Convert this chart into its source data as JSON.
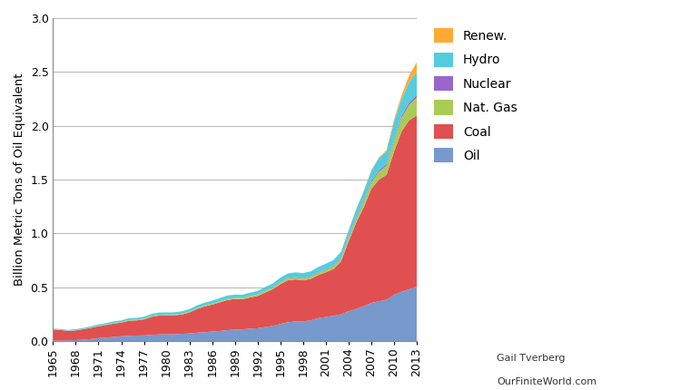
{
  "title": "",
  "ylabel": "Billion Metric Tons of Oil Equivalent",
  "years": [
    1965,
    1966,
    1967,
    1968,
    1969,
    1970,
    1971,
    1972,
    1973,
    1974,
    1975,
    1976,
    1977,
    1978,
    1979,
    1980,
    1981,
    1982,
    1983,
    1984,
    1985,
    1986,
    1987,
    1988,
    1989,
    1990,
    1991,
    1992,
    1993,
    1994,
    1995,
    1996,
    1997,
    1998,
    1999,
    2000,
    2001,
    2002,
    2003,
    2004,
    2005,
    2006,
    2007,
    2008,
    2009,
    2010,
    2011,
    2012,
    2013
  ],
  "oil": [
    0.005,
    0.006,
    0.007,
    0.01,
    0.014,
    0.02,
    0.028,
    0.033,
    0.04,
    0.046,
    0.049,
    0.052,
    0.054,
    0.059,
    0.063,
    0.064,
    0.065,
    0.068,
    0.072,
    0.079,
    0.083,
    0.09,
    0.095,
    0.102,
    0.107,
    0.11,
    0.116,
    0.12,
    0.132,
    0.142,
    0.16,
    0.176,
    0.183,
    0.185,
    0.193,
    0.214,
    0.225,
    0.235,
    0.25,
    0.277,
    0.3,
    0.325,
    0.355,
    0.37,
    0.385,
    0.43,
    0.46,
    0.482,
    0.507
  ],
  "coal": [
    0.103,
    0.098,
    0.088,
    0.09,
    0.097,
    0.104,
    0.111,
    0.116,
    0.123,
    0.126,
    0.141,
    0.141,
    0.148,
    0.167,
    0.175,
    0.175,
    0.175,
    0.18,
    0.195,
    0.22,
    0.24,
    0.25,
    0.265,
    0.28,
    0.285,
    0.28,
    0.29,
    0.3,
    0.32,
    0.34,
    0.37,
    0.39,
    0.39,
    0.38,
    0.385,
    0.4,
    0.415,
    0.435,
    0.49,
    0.65,
    0.8,
    0.92,
    1.06,
    1.13,
    1.16,
    1.33,
    1.49,
    1.57,
    1.59
  ],
  "natgas": [
    0.001,
    0.001,
    0.001,
    0.002,
    0.002,
    0.003,
    0.004,
    0.005,
    0.006,
    0.006,
    0.006,
    0.006,
    0.007,
    0.008,
    0.008,
    0.008,
    0.007,
    0.007,
    0.007,
    0.008,
    0.008,
    0.009,
    0.01,
    0.011,
    0.011,
    0.012,
    0.013,
    0.014,
    0.015,
    0.015,
    0.016,
    0.017,
    0.017,
    0.017,
    0.018,
    0.02,
    0.022,
    0.024,
    0.025,
    0.028,
    0.035,
    0.045,
    0.058,
    0.072,
    0.085,
    0.1,
    0.125,
    0.143,
    0.163
  ],
  "nuclear": [
    0.0,
    0.0,
    0.0,
    0.0,
    0.0,
    0.0,
    0.0,
    0.0,
    0.0,
    0.0,
    0.0,
    0.0,
    0.0,
    0.0,
    0.0,
    0.0,
    0.0,
    0.0,
    0.0,
    0.0,
    0.0,
    0.0,
    0.0,
    0.0,
    0.0,
    0.0,
    0.0,
    0.0,
    0.0,
    0.001,
    0.003,
    0.004,
    0.004,
    0.005,
    0.005,
    0.005,
    0.006,
    0.007,
    0.009,
    0.011,
    0.012,
    0.013,
    0.014,
    0.015,
    0.016,
    0.017,
    0.019,
    0.022,
    0.025
  ],
  "hydro": [
    0.008,
    0.008,
    0.008,
    0.009,
    0.01,
    0.011,
    0.013,
    0.014,
    0.015,
    0.015,
    0.017,
    0.018,
    0.018,
    0.02,
    0.02,
    0.02,
    0.021,
    0.022,
    0.024,
    0.025,
    0.026,
    0.028,
    0.03,
    0.031,
    0.029,
    0.03,
    0.031,
    0.032,
    0.036,
    0.038,
    0.041,
    0.043,
    0.045,
    0.046,
    0.047,
    0.05,
    0.051,
    0.052,
    0.055,
    0.063,
    0.076,
    0.089,
    0.096,
    0.113,
    0.118,
    0.163,
    0.155,
    0.193,
    0.215
  ],
  "renew": [
    0.0,
    0.0,
    0.0,
    0.0,
    0.0,
    0.0,
    0.0,
    0.0,
    0.0,
    0.0,
    0.0,
    0.0,
    0.0,
    0.0,
    0.0,
    0.0,
    0.0,
    0.0,
    0.0,
    0.0,
    0.0,
    0.0,
    0.0,
    0.0,
    0.0,
    0.0,
    0.0,
    0.0,
    0.0,
    0.0,
    0.0,
    0.0,
    0.0,
    0.0,
    0.0,
    0.0,
    0.0,
    0.0,
    0.001,
    0.001,
    0.002,
    0.003,
    0.005,
    0.007,
    0.01,
    0.02,
    0.035,
    0.06,
    0.09
  ],
  "colors": {
    "oil": "#7799cc",
    "coal": "#e05050",
    "natgas": "#aacc55",
    "nuclear": "#9966cc",
    "hydro": "#55ccdd",
    "renew": "#ffaa33"
  },
  "ylim": [
    0,
    3.0
  ],
  "yticks": [
    0.0,
    0.5,
    1.0,
    1.5,
    2.0,
    2.5,
    3.0
  ],
  "xtick_years": [
    1965,
    1968,
    1971,
    1974,
    1977,
    1980,
    1983,
    1986,
    1989,
    1992,
    1995,
    1998,
    2001,
    2004,
    2007,
    2010,
    2013
  ],
  "background_color": "#ffffff",
  "watermark1": "Gail Tverberg",
  "watermark2": "OurFiniteWorld.com"
}
